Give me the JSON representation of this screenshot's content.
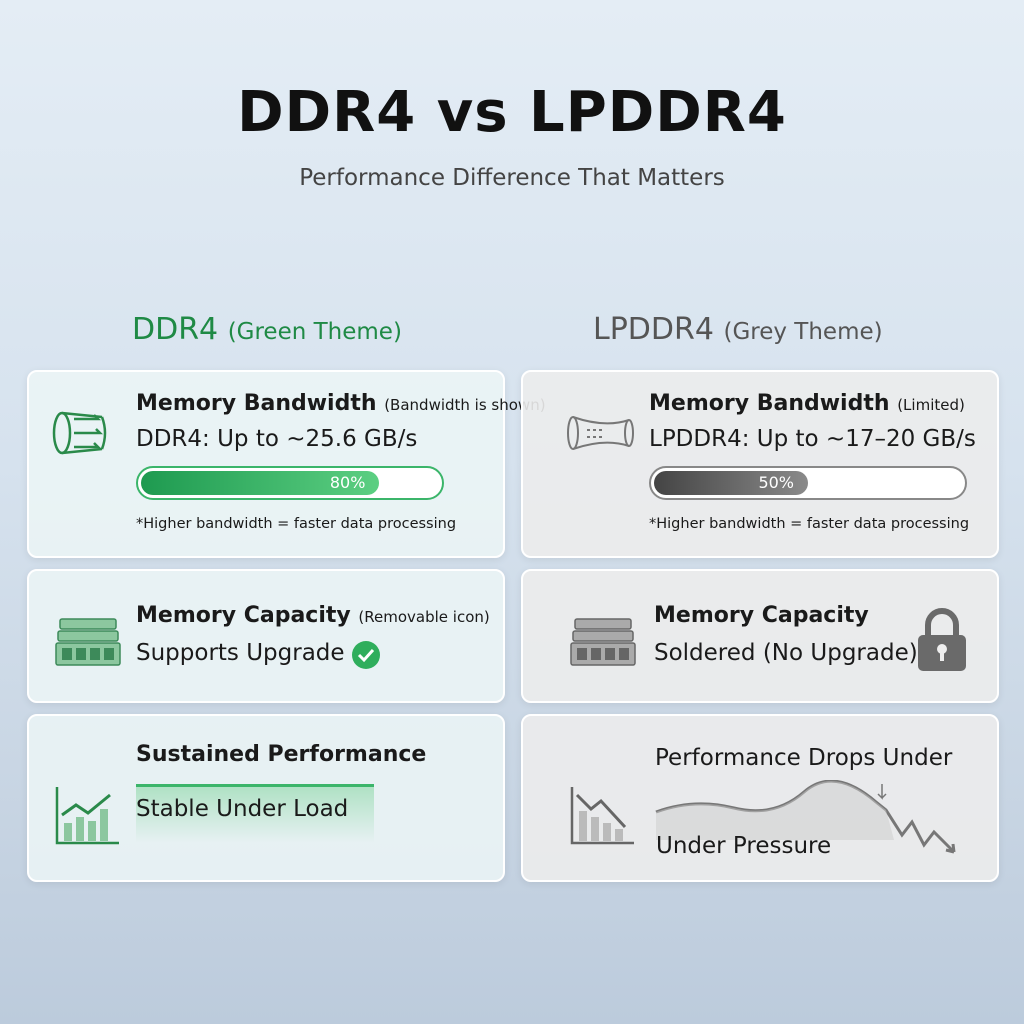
{
  "header": {
    "title": "DDR4 vs LPDDR4",
    "subtitle": "Performance Difference That Matters"
  },
  "columns": [
    {
      "name": "DDR4",
      "theme": "(Green Theme)",
      "bandwidth": {
        "title": "Memory Bandwidth",
        "note": "(Bandwidth is shown)",
        "value": "DDR4: Up to ~25.6 GB/s",
        "progress": {
          "value": 80,
          "label": "80%"
        },
        "footnote": "*Higher bandwidth = faster data processing"
      },
      "capacity": {
        "title": "Memory Capacity",
        "note": "(Removable icon)",
        "value": "Supports Upgrade"
      },
      "performance": {
        "title": "Sustained Performance",
        "value": "Stable Under Load"
      }
    },
    {
      "name": "LPDDR4",
      "theme": "(Grey Theme)",
      "bandwidth": {
        "title": "Memory Bandwidth",
        "note": "(Limited)",
        "value": "LPDDR4: Up to ~17–20 GB/s",
        "progress": {
          "value": 50,
          "label": "50%"
        },
        "footnote": "*Higher bandwidth = faster data processing"
      },
      "capacity": {
        "title": "Memory Capacity",
        "value": "Soldered (No Upgrade)"
      },
      "performance": {
        "title": "Performance Drops Under",
        "value": "Under Pressure"
      }
    }
  ]
}
